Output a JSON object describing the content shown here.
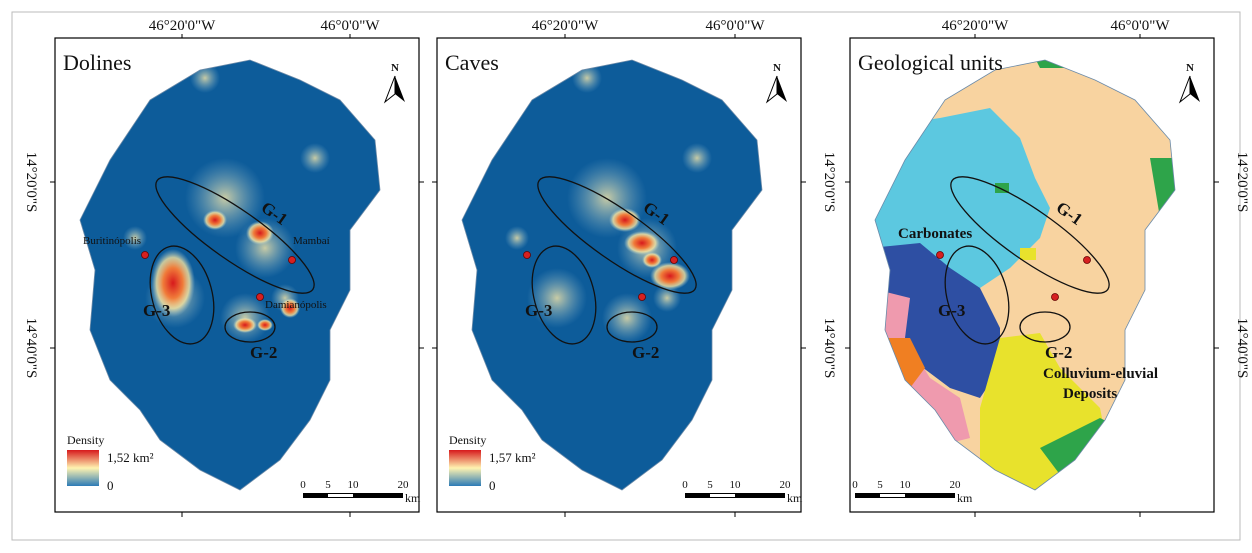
{
  "north": "N",
  "panels": [
    {
      "title": "Dolines",
      "top_labels": [
        "46°20'0\"W",
        "46°0'0\"W"
      ],
      "side_labels": [
        "14°20'0\"S",
        "14°40'0\"S"
      ],
      "groups": [
        "G-1",
        "G-2",
        "G-3"
      ],
      "places": [
        "Buritinópolis",
        "Mambaí",
        "Damianópolis"
      ],
      "legend": {
        "title": "Density",
        "max": "1,52 km²",
        "min": "0"
      },
      "scale": {
        "ticks": [
          0,
          5,
          10,
          20
        ],
        "unit": "km"
      }
    },
    {
      "title": "Caves",
      "top_labels": [
        "46°20'0\"W",
        "46°0'0\"W"
      ],
      "side_labels": [
        "14°20'0\"S",
        "14°40'0\"S"
      ],
      "groups": [
        "G-1",
        "G-2",
        "G-3"
      ],
      "legend": {
        "title": "Density",
        "max": "1,57 km²",
        "min": "0"
      },
      "scale": {
        "ticks": [
          0,
          5,
          10,
          20
        ],
        "unit": "km"
      }
    },
    {
      "title": "Geological units",
      "top_labels": [
        "46°20'0\"W",
        "46°0'0\"W"
      ],
      "side_labels": [
        "14°20'0\"S",
        "14°40'0\"S"
      ],
      "groups": [
        "G-1",
        "G-2",
        "G-3"
      ],
      "units": [
        "Carbonates",
        [
          "Colluvium-eluvial",
          "Deposits"
        ]
      ],
      "scale": {
        "ticks": [
          0,
          5,
          10,
          20
        ],
        "unit": "km"
      }
    }
  ]
}
